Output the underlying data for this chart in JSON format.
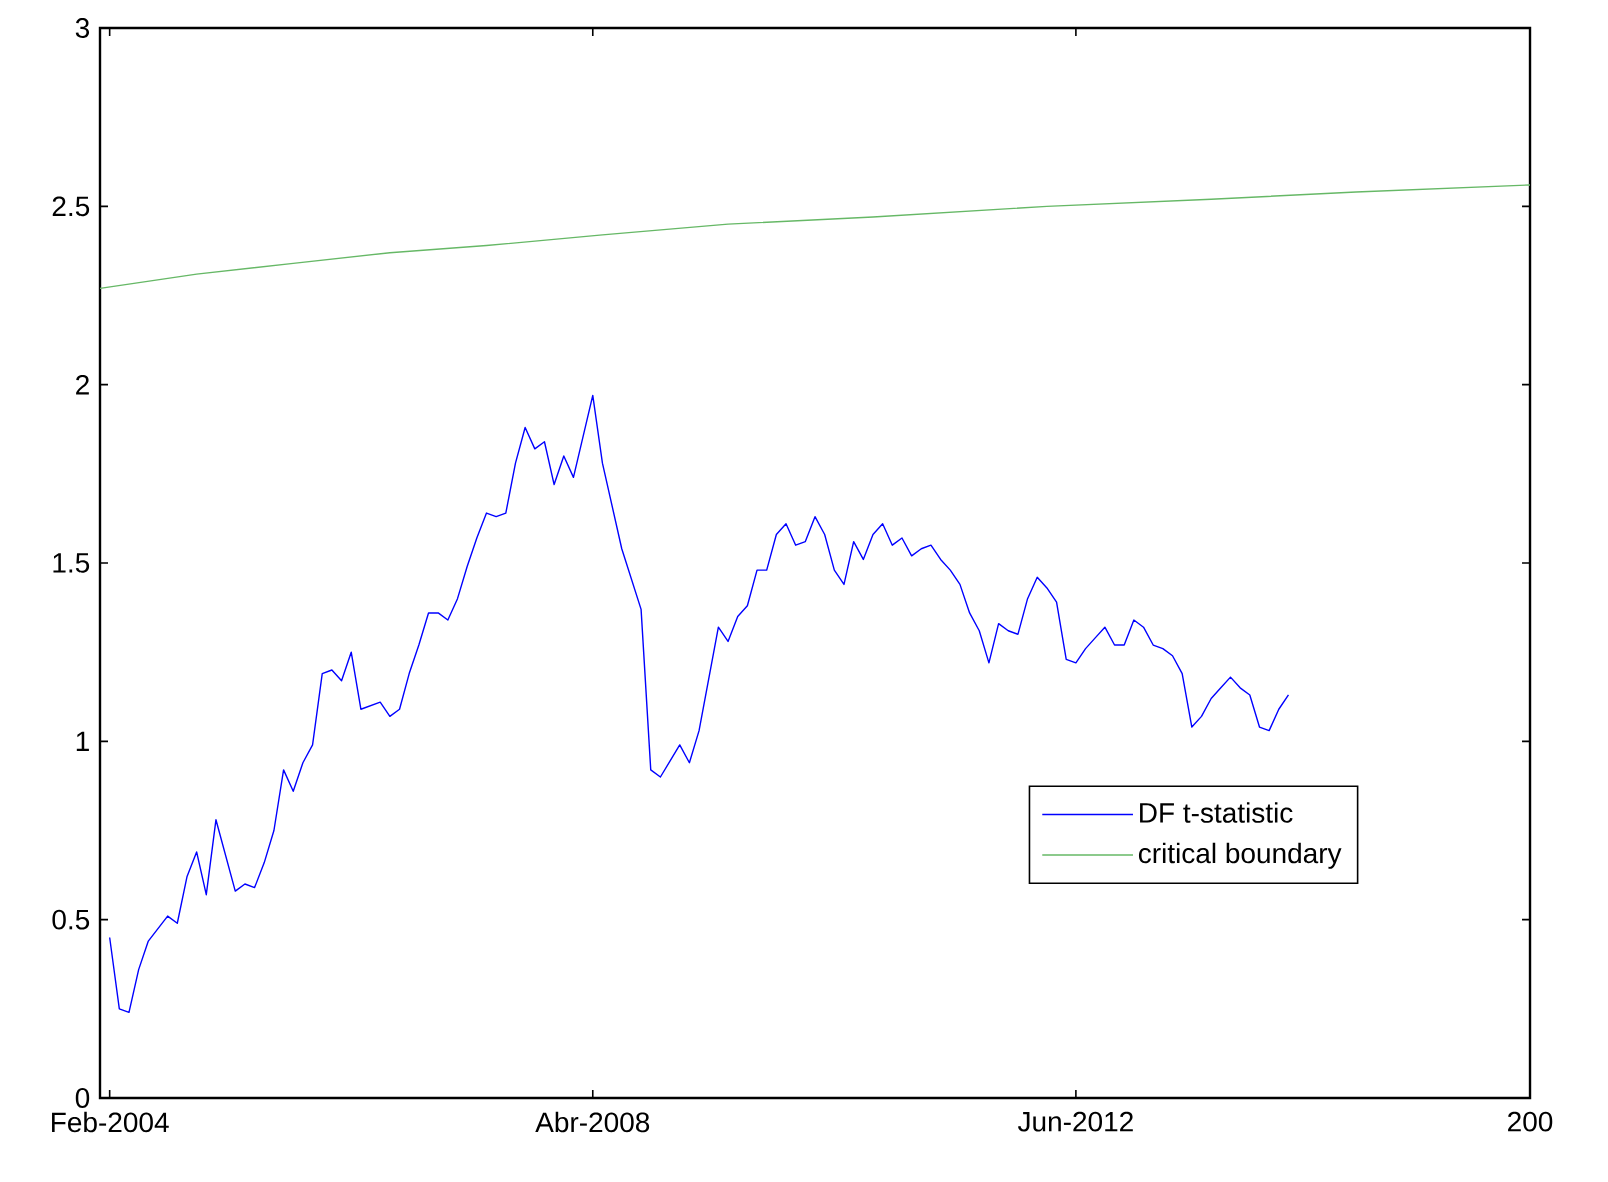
{
  "chart_data": {
    "type": "line",
    "xlim": [
      "2004-01",
      "2016-05"
    ],
    "ylim": [
      0,
      3
    ],
    "xticks": [
      {
        "value": "2004-02",
        "label": "Feb-2004"
      },
      {
        "value": "2008-04",
        "label": "Abr-2008"
      },
      {
        "value": "2012-06",
        "label": "Jun-2012"
      },
      {
        "value": "2016-05",
        "label": "200"
      }
    ],
    "yticks": [
      0,
      0.5,
      1,
      1.5,
      2,
      2.5,
      3
    ],
    "grid": false,
    "legend": "right",
    "marker": "none",
    "line_style": "solid",
    "series": [
      {
        "name": "DF t-statistic",
        "color": "#0000ff",
        "x": [
          "2004-02",
          "2004-03",
          "2004-04",
          "2004-05",
          "2004-06",
          "2004-08",
          "2004-09",
          "2004-10",
          "2004-11",
          "2004-12",
          "2005-01",
          "2005-03",
          "2005-04",
          "2005-05",
          "2005-06",
          "2005-07",
          "2005-08",
          "2005-09",
          "2005-10",
          "2005-11",
          "2005-12",
          "2006-01",
          "2006-02",
          "2006-03",
          "2006-04",
          "2006-06",
          "2006-07",
          "2006-08",
          "2006-09",
          "2006-10",
          "2006-11",
          "2006-12",
          "2007-01",
          "2007-02",
          "2007-03",
          "2007-04",
          "2007-05",
          "2007-06",
          "2007-07",
          "2007-08",
          "2007-09",
          "2007-10",
          "2007-11",
          "2007-12",
          "2008-01",
          "2008-02",
          "2008-04",
          "2008-05",
          "2008-07",
          "2008-09",
          "2008-10",
          "2008-11",
          "2009-01",
          "2009-02",
          "2009-03",
          "2009-05",
          "2009-06",
          "2009-07",
          "2009-08",
          "2009-09",
          "2009-10",
          "2009-11",
          "2009-12",
          "2010-01",
          "2010-02",
          "2010-03",
          "2010-04",
          "2010-05",
          "2010-06",
          "2010-07",
          "2010-08",
          "2010-09",
          "2010-10",
          "2010-11",
          "2010-12",
          "2011-01",
          "2011-02",
          "2011-03",
          "2011-04",
          "2011-05",
          "2011-06",
          "2011-07",
          "2011-08",
          "2011-09",
          "2011-10",
          "2011-11",
          "2011-12",
          "2012-01",
          "2012-02",
          "2012-03",
          "2012-04",
          "2012-05",
          "2012-06",
          "2012-07",
          "2012-08",
          "2012-09",
          "2012-10",
          "2012-11",
          "2012-12",
          "2013-01",
          "2013-02",
          "2013-03",
          "2013-04",
          "2013-05",
          "2013-06",
          "2013-07",
          "2013-08",
          "2013-09",
          "2013-10",
          "2013-11",
          "2013-12",
          "2014-01",
          "2014-02",
          "2014-03",
          "2014-04"
        ],
        "values": [
          0.45,
          0.25,
          0.24,
          0.36,
          0.44,
          0.51,
          0.49,
          0.62,
          0.69,
          0.57,
          0.78,
          0.58,
          0.6,
          0.59,
          0.66,
          0.75,
          0.92,
          0.86,
          0.94,
          0.99,
          1.19,
          1.2,
          1.17,
          1.25,
          1.09,
          1.11,
          1.07,
          1.09,
          1.19,
          1.27,
          1.36,
          1.36,
          1.34,
          1.4,
          1.49,
          1.57,
          1.64,
          1.63,
          1.64,
          1.78,
          1.88,
          1.82,
          1.84,
          1.72,
          1.8,
          1.74,
          1.97,
          1.78,
          1.54,
          1.37,
          0.92,
          0.9,
          0.99,
          0.94,
          1.03,
          1.32,
          1.28,
          1.35,
          1.38,
          1.48,
          1.48,
          1.58,
          1.61,
          1.55,
          1.56,
          1.63,
          1.58,
          1.48,
          1.44,
          1.56,
          1.51,
          1.58,
          1.61,
          1.55,
          1.57,
          1.52,
          1.54,
          1.55,
          1.51,
          1.48,
          1.44,
          1.36,
          1.31,
          1.22,
          1.33,
          1.31,
          1.3,
          1.4,
          1.46,
          1.43,
          1.39,
          1.23,
          1.22,
          1.26,
          1.29,
          1.32,
          1.27,
          1.27,
          1.34,
          1.32,
          1.27,
          1.26,
          1.24,
          1.19,
          1.04,
          1.07,
          1.12,
          1.15,
          1.18,
          1.15,
          1.13,
          1.04,
          1.03,
          1.09,
          1.13
        ]
      },
      {
        "name": "critical boundary",
        "color": "#66b866",
        "x": [
          "2004-01",
          "2004-11",
          "2005-09",
          "2006-07",
          "2007-05",
          "2008-05",
          "2009-06",
          "2010-09",
          "2012-03",
          "2013-08",
          "2014-11",
          "2016-05"
        ],
        "values": [
          2.27,
          2.31,
          2.34,
          2.37,
          2.39,
          2.42,
          2.45,
          2.47,
          2.5,
          2.52,
          2.54,
          2.56
        ]
      }
    ]
  }
}
